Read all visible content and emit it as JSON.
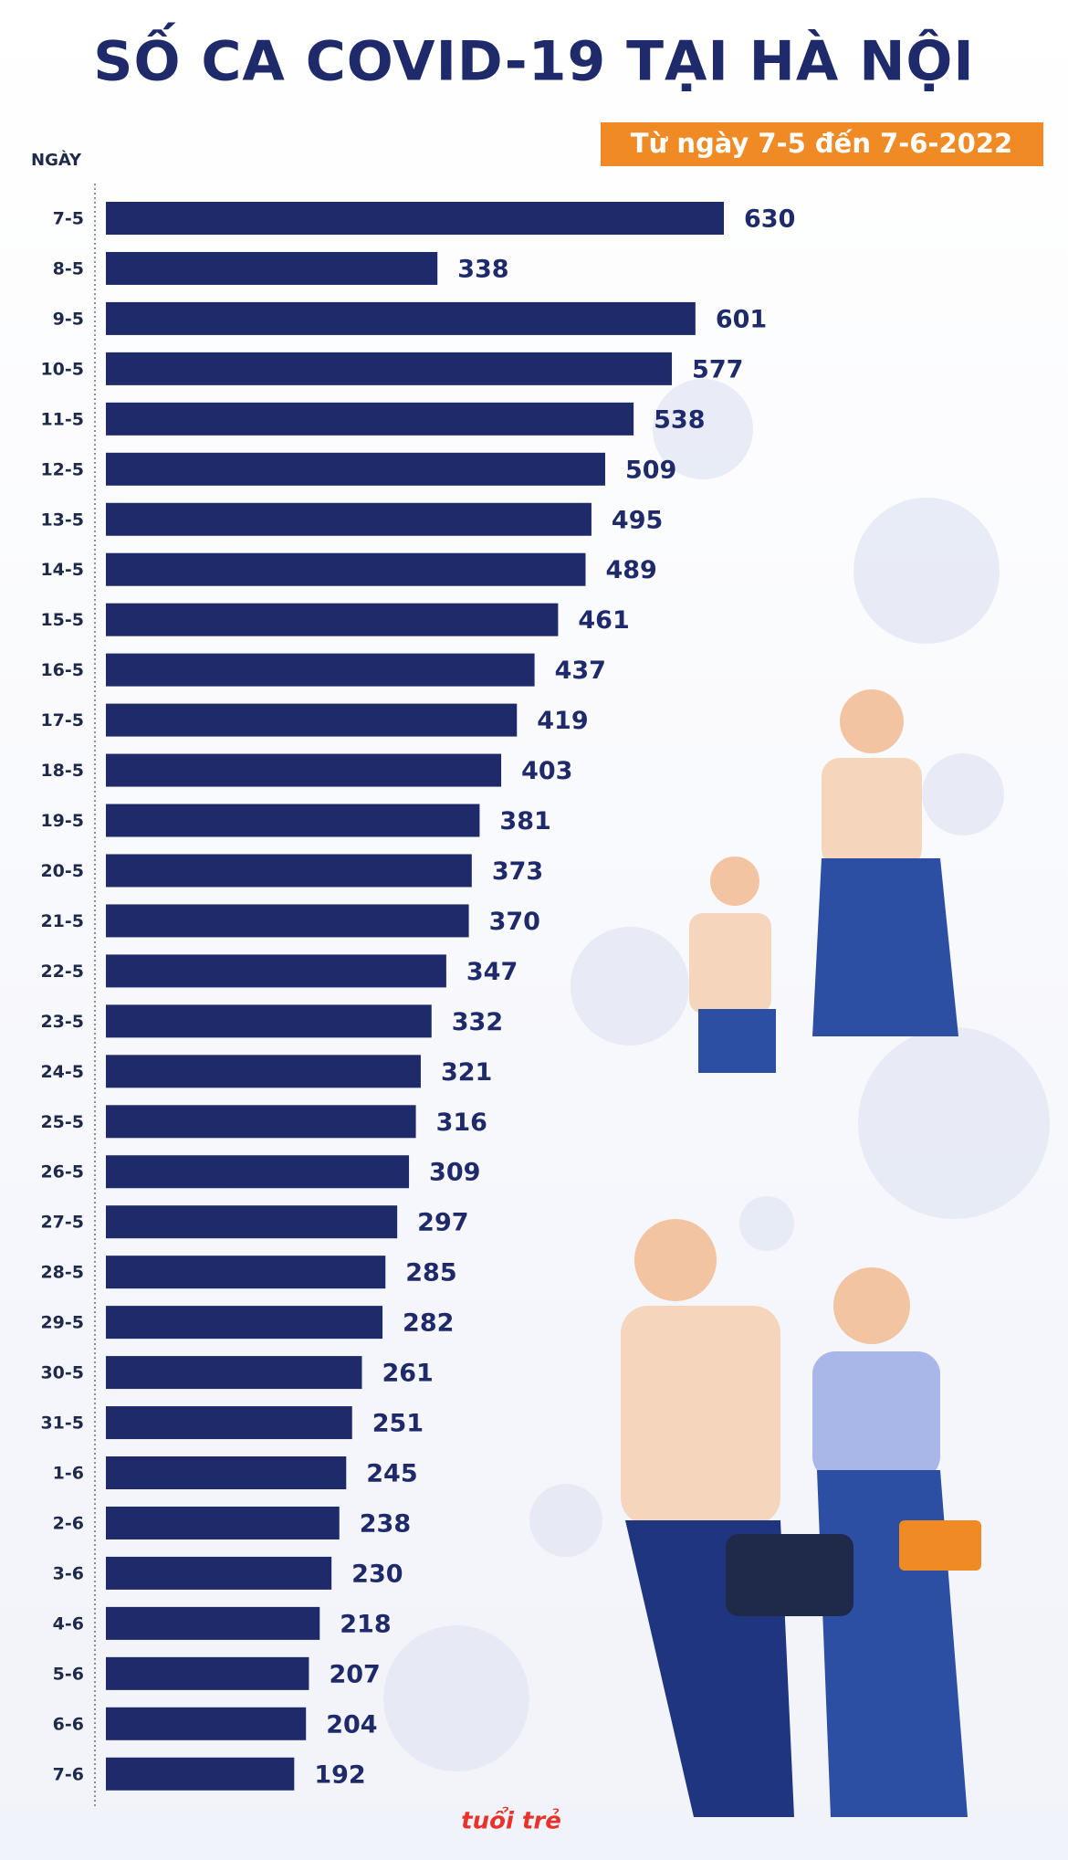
{
  "chart_data": {
    "type": "barh",
    "title": "SỐ CA COVID-19 TẠI HÀ NỘI",
    "subtitle": "Từ ngày 7-5 đến 7-6-2022",
    "y_label": "NGÀY",
    "source_logo": "tuổi trẻ",
    "color": "#1f2a6b",
    "xlim": [
      0,
      630
    ],
    "categories": [
      "7-5",
      "8-5",
      "9-5",
      "10-5",
      "11-5",
      "12-5",
      "13-5",
      "14-5",
      "15-5",
      "16-5",
      "17-5",
      "18-5",
      "19-5",
      "20-5",
      "21-5",
      "22-5",
      "23-5",
      "24-5",
      "25-5",
      "26-5",
      "27-5",
      "28-5",
      "29-5",
      "30-5",
      "31-5",
      "1-6",
      "2-6",
      "3-6",
      "4-6",
      "5-6",
      "6-6",
      "7-6"
    ],
    "values": [
      630,
      338,
      601,
      577,
      538,
      509,
      495,
      489,
      461,
      437,
      419,
      403,
      381,
      373,
      370,
      347,
      332,
      321,
      316,
      309,
      297,
      285,
      282,
      261,
      251,
      245,
      238,
      230,
      218,
      207,
      204,
      192
    ]
  }
}
